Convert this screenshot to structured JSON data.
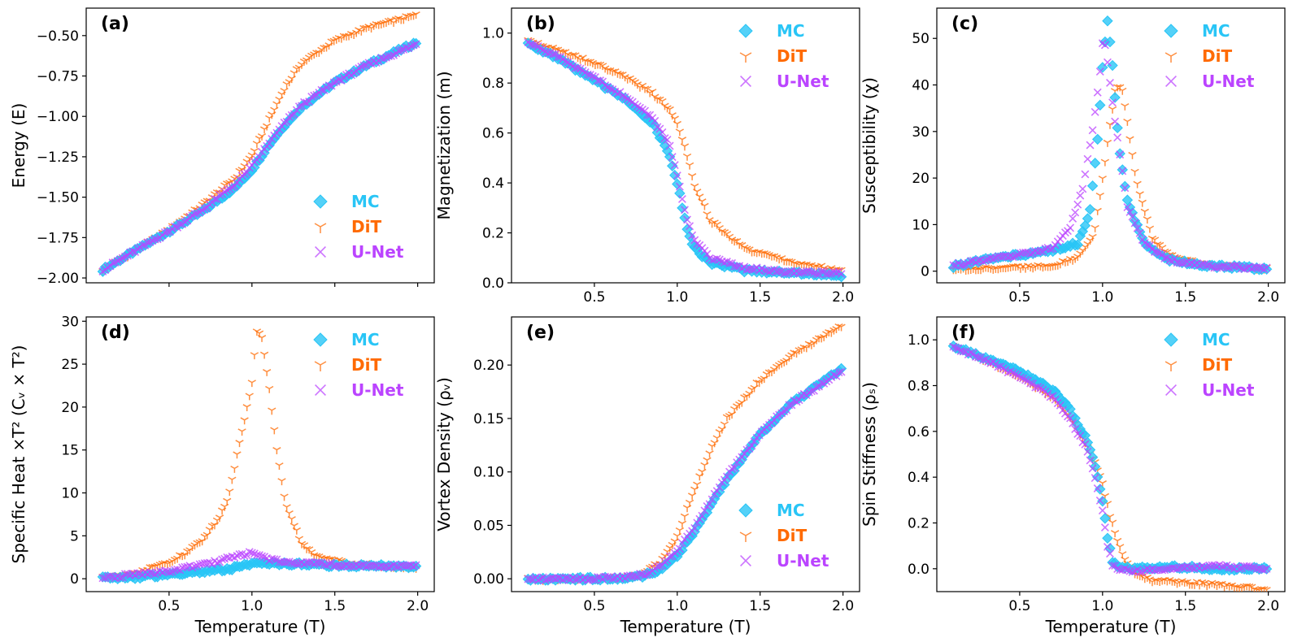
{
  "figure": {
    "series_styles": [
      {
        "name": "MC",
        "color": "#29c5f6",
        "marker": "diamond"
      },
      {
        "name": "DiT",
        "color": "#ff6a00",
        "marker": "tri_down"
      },
      {
        "name": "U-Net",
        "color": "#bb44ff",
        "marker": "x"
      }
    ]
  },
  "chart_data": [
    {
      "panel": "(a)",
      "type": "scatter",
      "xlabel": "",
      "ylabel": "Energy (E)",
      "xlim": [
        0.0,
        2.1
      ],
      "ylim": [
        -2.03,
        -0.33
      ],
      "xticks": [
        0.5,
        1.0,
        1.5,
        2.0
      ],
      "xtick_labels": [
        "",
        "",
        "",
        ""
      ],
      "yticks": [
        -2.0,
        -1.75,
        -1.5,
        -1.25,
        -1.0,
        -0.75,
        -0.5
      ],
      "ytick_labels": [
        "−2.00",
        "−1.75",
        "−1.50",
        "−1.25",
        "−1.00",
        "−0.75",
        "−0.50"
      ],
      "legend": "lower-right",
      "series": [
        {
          "name": "MC",
          "x": [
            0.1,
            0.3,
            0.5,
            0.7,
            0.9,
            1.0,
            1.1,
            1.2,
            1.3,
            1.5,
            1.7,
            2.0
          ],
          "y": [
            -1.95,
            -1.83,
            -1.71,
            -1.59,
            -1.44,
            -1.33,
            -1.18,
            -1.05,
            -0.94,
            -0.79,
            -0.68,
            -0.54
          ]
        },
        {
          "name": "DiT",
          "x": [
            0.1,
            0.3,
            0.5,
            0.7,
            0.9,
            1.0,
            1.1,
            1.2,
            1.3,
            1.5,
            1.7,
            2.0
          ],
          "y": [
            -1.95,
            -1.83,
            -1.7,
            -1.55,
            -1.38,
            -1.24,
            -1.03,
            -0.82,
            -0.67,
            -0.53,
            -0.45,
            -0.37
          ]
        },
        {
          "name": "U-Net",
          "x": [
            0.1,
            0.3,
            0.5,
            0.7,
            0.9,
            1.0,
            1.1,
            1.2,
            1.3,
            1.5,
            1.7,
            2.0
          ],
          "y": [
            -1.95,
            -1.83,
            -1.71,
            -1.58,
            -1.42,
            -1.31,
            -1.17,
            -1.04,
            -0.93,
            -0.79,
            -0.68,
            -0.55
          ]
        }
      ]
    },
    {
      "panel": "(b)",
      "type": "scatter",
      "xlabel": "",
      "ylabel": "Magnetization (m)",
      "xlim": [
        0.0,
        2.1
      ],
      "ylim": [
        0.0,
        1.1
      ],
      "xticks": [
        0.5,
        1.0,
        1.5,
        2.0
      ],
      "xtick_labels": [
        "0.5",
        "1.0",
        "1.5",
        "2.0"
      ],
      "yticks": [
        0.0,
        0.2,
        0.4,
        0.6,
        0.8,
        1.0
      ],
      "ytick_labels": [
        "0.0",
        "0.2",
        "0.4",
        "0.6",
        "0.8",
        "1.0"
      ],
      "legend": "upper-right",
      "series": [
        {
          "name": "MC",
          "x": [
            0.1,
            0.3,
            0.5,
            0.7,
            0.85,
            0.95,
            1.0,
            1.05,
            1.1,
            1.2,
            1.4,
            1.7,
            2.0
          ],
          "y": [
            0.96,
            0.89,
            0.81,
            0.73,
            0.64,
            0.52,
            0.4,
            0.24,
            0.14,
            0.08,
            0.05,
            0.04,
            0.03
          ]
        },
        {
          "name": "DiT",
          "x": [
            0.1,
            0.3,
            0.5,
            0.7,
            0.85,
            0.95,
            1.0,
            1.05,
            1.1,
            1.2,
            1.4,
            1.7,
            2.0
          ],
          "y": [
            0.97,
            0.93,
            0.88,
            0.82,
            0.76,
            0.7,
            0.64,
            0.54,
            0.4,
            0.25,
            0.14,
            0.08,
            0.05
          ]
        },
        {
          "name": "U-Net",
          "x": [
            0.1,
            0.3,
            0.5,
            0.7,
            0.85,
            0.95,
            1.0,
            1.05,
            1.1,
            1.2,
            1.4,
            1.7,
            2.0
          ],
          "y": [
            0.96,
            0.9,
            0.82,
            0.74,
            0.66,
            0.56,
            0.43,
            0.28,
            0.17,
            0.1,
            0.06,
            0.04,
            0.04
          ]
        }
      ]
    },
    {
      "panel": "(c)",
      "type": "scatter",
      "xlabel": "",
      "ylabel": "Susceptibility (χ)",
      "xlim": [
        0.0,
        2.1
      ],
      "ylim": [
        -2.5,
        56.5
      ],
      "xticks": [
        0.5,
        1.0,
        1.5,
        2.0
      ],
      "xtick_labels": [
        "0.5",
        "1.0",
        "1.5",
        "2.0"
      ],
      "yticks": [
        0,
        10,
        20,
        30,
        40,
        50
      ],
      "ytick_labels": [
        "0",
        "10",
        "20",
        "30",
        "40",
        "50"
      ],
      "legend": "upper-right",
      "series": [
        {
          "name": "MC",
          "x": [
            0.1,
            0.3,
            0.5,
            0.7,
            0.85,
            0.92,
            0.97,
            1.0,
            1.03,
            1.06,
            1.1,
            1.15,
            1.25,
            1.4,
            1.6,
            2.0
          ],
          "y": [
            1,
            2.5,
            3.5,
            4.5,
            6,
            12,
            28,
            44,
            54,
            44,
            26,
            15,
            6,
            2.5,
            1.2,
            0.5
          ]
        },
        {
          "name": "DiT",
          "x": [
            0.1,
            0.3,
            0.5,
            0.7,
            0.85,
            0.95,
            1.02,
            1.08,
            1.12,
            1.15,
            1.2,
            1.3,
            1.4,
            1.6,
            2.0
          ],
          "y": [
            0.3,
            0.6,
            0.8,
            1.2,
            3,
            8,
            25,
            40,
            39,
            32,
            20,
            7,
            3.5,
            1.5,
            0.6
          ]
        },
        {
          "name": "U-Net",
          "x": [
            0.1,
            0.3,
            0.5,
            0.7,
            0.8,
            0.88,
            0.94,
            0.98,
            1.0,
            1.02,
            1.06,
            1.1,
            1.15,
            1.25,
            1.4,
            1.6,
            2.0
          ],
          "y": [
            1.2,
            2.5,
            3.5,
            5,
            9,
            18,
            30,
            41,
            49,
            48,
            36,
            26,
            14,
            6,
            2.5,
            1.2,
            0.5
          ]
        }
      ]
    },
    {
      "panel": "(d)",
      "type": "scatter",
      "xlabel": "Temperature (T)",
      "ylabel": "Specific Heat ×T² (Cᵥ × T²)",
      "xlim": [
        0.0,
        2.1
      ],
      "ylim": [
        -1.5,
        30.5
      ],
      "xticks": [
        0.5,
        1.0,
        1.5,
        2.0
      ],
      "xtick_labels": [
        "0.5",
        "1.0",
        "1.5",
        "2.0"
      ],
      "yticks": [
        0,
        5,
        10,
        15,
        20,
        25,
        30
      ],
      "ytick_labels": [
        "0",
        "5",
        "10",
        "15",
        "20",
        "25",
        "30"
      ],
      "legend": "upper-right",
      "series": [
        {
          "name": "MC",
          "x": [
            0.1,
            0.3,
            0.5,
            0.7,
            0.85,
            0.95,
            1.0,
            1.05,
            1.1,
            1.2,
            1.4,
            1.7,
            2.0
          ],
          "y": [
            0.05,
            0.2,
            0.5,
            0.8,
            1.1,
            1.5,
            1.7,
            1.8,
            1.8,
            1.75,
            1.6,
            1.5,
            1.4
          ]
        },
        {
          "name": "DiT",
          "x": [
            0.1,
            0.3,
            0.5,
            0.6,
            0.7,
            0.8,
            0.85,
            0.9,
            0.95,
            1.0,
            1.03,
            1.06,
            1.1,
            1.15,
            1.2,
            1.3,
            1.4,
            1.6,
            2.0
          ],
          "y": [
            0.1,
            0.6,
            2,
            3,
            4.5,
            7,
            9,
            13.5,
            18,
            23,
            29,
            28,
            23,
            15,
            9,
            4,
            2.5,
            1.8,
            1.3
          ]
        },
        {
          "name": "U-Net",
          "x": [
            0.1,
            0.3,
            0.5,
            0.7,
            0.85,
            0.95,
            1.0,
            1.05,
            1.1,
            1.2,
            1.4,
            1.7,
            2.0
          ],
          "y": [
            0.1,
            0.5,
            0.9,
            1.6,
            2.3,
            2.8,
            3.0,
            2.7,
            2.2,
            1.9,
            1.7,
            1.5,
            1.4
          ]
        }
      ]
    },
    {
      "panel": "(e)",
      "type": "scatter",
      "xlabel": "Temperature (T)",
      "ylabel": "Vortex Density (ρᵥ)",
      "xlim": [
        0.0,
        2.1
      ],
      "ylim": [
        -0.012,
        0.245
      ],
      "xticks": [
        0.5,
        1.0,
        1.5,
        2.0
      ],
      "xtick_labels": [
        "0.5",
        "1.0",
        "1.5",
        "2.0"
      ],
      "yticks": [
        0.0,
        0.05,
        0.1,
        0.15,
        0.2
      ],
      "ytick_labels": [
        "0.00",
        "0.05",
        "0.10",
        "0.15",
        "0.20"
      ],
      "legend": "lower-right",
      "series": [
        {
          "name": "MC",
          "x": [
            0.1,
            0.5,
            0.7,
            0.8,
            0.9,
            1.0,
            1.1,
            1.2,
            1.3,
            1.5,
            1.7,
            2.0
          ],
          "y": [
            0,
            0,
            0.001,
            0.003,
            0.009,
            0.022,
            0.043,
            0.068,
            0.093,
            0.135,
            0.165,
            0.197
          ]
        },
        {
          "name": "DiT",
          "x": [
            0.1,
            0.5,
            0.7,
            0.8,
            0.9,
            1.0,
            1.1,
            1.2,
            1.3,
            1.5,
            1.7,
            2.0
          ],
          "y": [
            0,
            0,
            0.002,
            0.006,
            0.016,
            0.04,
            0.082,
            0.12,
            0.15,
            0.186,
            0.21,
            0.238
          ]
        },
        {
          "name": "U-Net",
          "x": [
            0.1,
            0.5,
            0.7,
            0.8,
            0.9,
            1.0,
            1.1,
            1.2,
            1.3,
            1.5,
            1.7,
            2.0
          ],
          "y": [
            0,
            0,
            0.002,
            0.004,
            0.012,
            0.026,
            0.047,
            0.072,
            0.096,
            0.136,
            0.165,
            0.195
          ]
        }
      ]
    },
    {
      "panel": "(f)",
      "type": "scatter",
      "xlabel": "Temperature (T)",
      "ylabel": "Spin Stiffness (ρₛ)",
      "xlim": [
        0.0,
        2.1
      ],
      "ylim": [
        -0.1,
        1.1
      ],
      "xticks": [
        0.5,
        1.0,
        1.5,
        2.0
      ],
      "xtick_labels": [
        "0.5",
        "1.0",
        "1.5",
        "2.0"
      ],
      "yticks": [
        0.0,
        0.2,
        0.4,
        0.6,
        0.8,
        1.0
      ],
      "ytick_labels": [
        "0.0",
        "0.2",
        "0.4",
        "0.6",
        "0.8",
        "1.0"
      ],
      "legend": "upper-right",
      "series": [
        {
          "name": "MC",
          "x": [
            0.1,
            0.3,
            0.5,
            0.7,
            0.8,
            0.9,
            0.95,
            1.0,
            1.03,
            1.06,
            1.1,
            1.2,
            1.4,
            1.7,
            2.0
          ],
          "y": [
            0.97,
            0.92,
            0.86,
            0.78,
            0.7,
            0.57,
            0.47,
            0.3,
            0.14,
            0.03,
            0.01,
            0.0,
            0.01,
            0.0,
            0.0
          ]
        },
        {
          "name": "DiT",
          "x": [
            0.1,
            0.3,
            0.5,
            0.7,
            0.8,
            0.9,
            0.95,
            1.0,
            1.05,
            1.1,
            1.15,
            1.2,
            1.3,
            1.5,
            1.7,
            2.0
          ],
          "y": [
            0.97,
            0.91,
            0.84,
            0.75,
            0.67,
            0.55,
            0.47,
            0.37,
            0.22,
            0.1,
            0.02,
            -0.03,
            -0.05,
            -0.06,
            -0.07,
            -0.09
          ]
        },
        {
          "name": "U-Net",
          "x": [
            0.1,
            0.3,
            0.5,
            0.7,
            0.8,
            0.9,
            0.95,
            1.0,
            1.03,
            1.06,
            1.1,
            1.2,
            1.4,
            1.7,
            2.0
          ],
          "y": [
            0.97,
            0.91,
            0.84,
            0.75,
            0.66,
            0.53,
            0.42,
            0.25,
            0.1,
            0.02,
            0.0,
            -0.01,
            0.0,
            0.01,
            0.0
          ]
        }
      ]
    }
  ]
}
